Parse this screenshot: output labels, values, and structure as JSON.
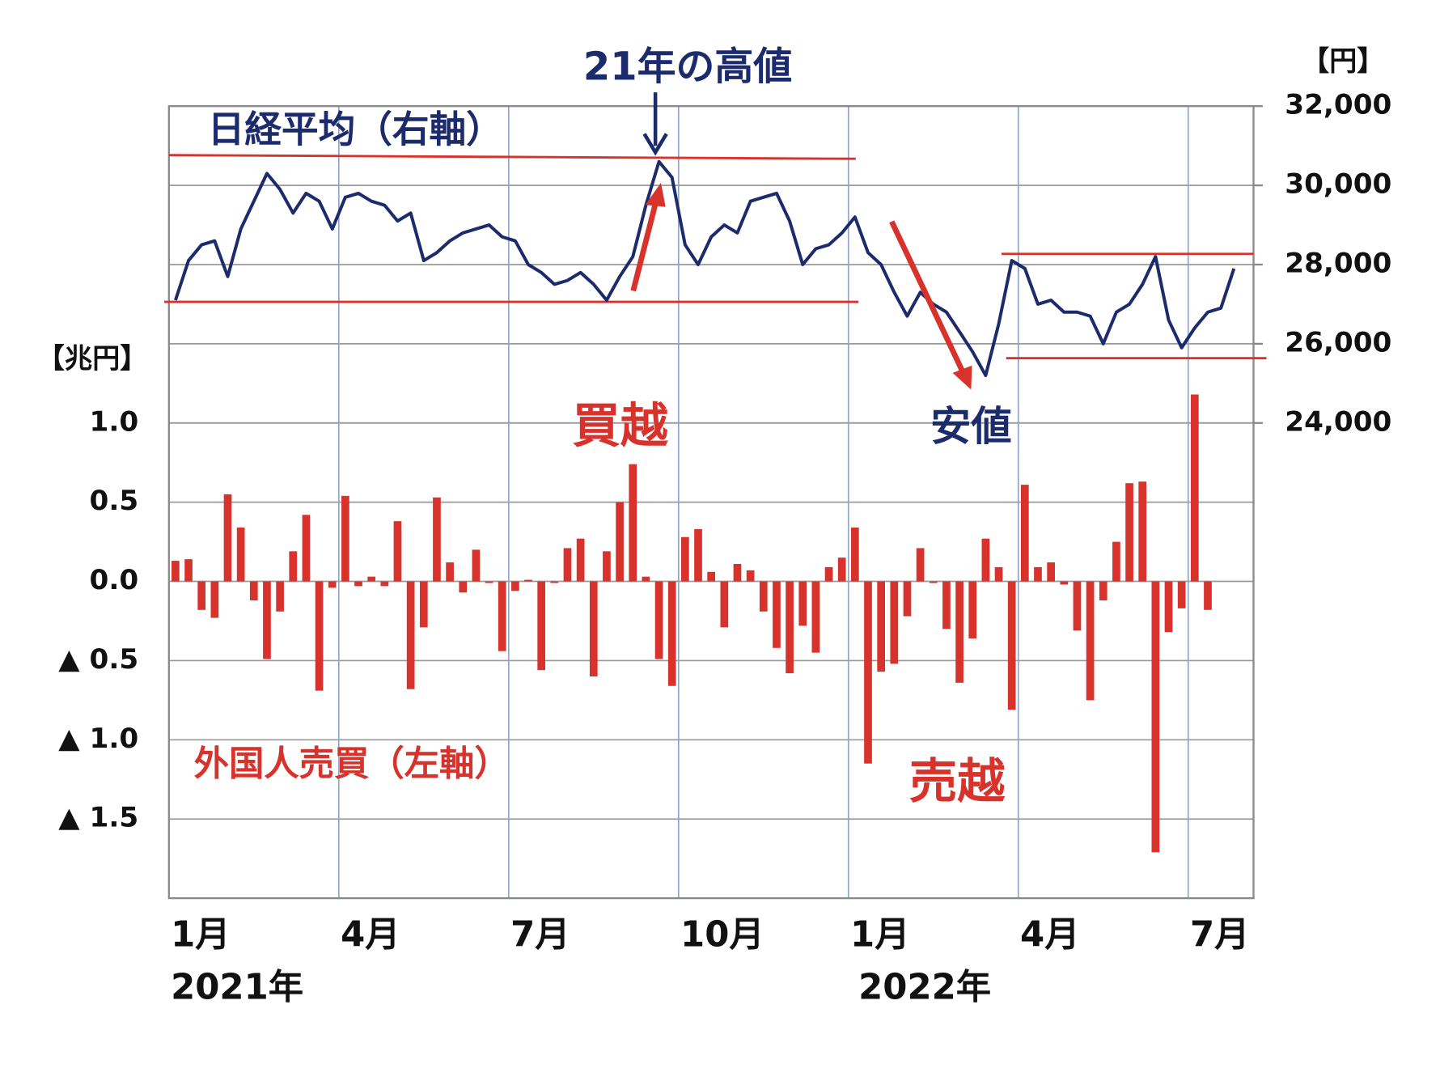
{
  "chart_data": {
    "type": "combo",
    "y_unit": "【兆円】",
    "y2_unit": "【円】",
    "annotations": [
      "21年の高値",
      "買越",
      "売越",
      "安値"
    ],
    "year_labels": [
      "2021年",
      "2022年"
    ],
    "categories": [
      "1月",
      null,
      null,
      null,
      null,
      null,
      null,
      null,
      null,
      null,
      null,
      null,
      null,
      "4月",
      null,
      null,
      null,
      null,
      null,
      null,
      null,
      null,
      null,
      null,
      null,
      null,
      "7月",
      null,
      null,
      null,
      null,
      null,
      null,
      null,
      null,
      null,
      null,
      null,
      null,
      "10月",
      null,
      null,
      null,
      null,
      null,
      null,
      null,
      null,
      null,
      null,
      null,
      null,
      "1月",
      null,
      null,
      null,
      null,
      null,
      null,
      null,
      null,
      null,
      null,
      null,
      null,
      "4月",
      null,
      null,
      null,
      null,
      null,
      null,
      null,
      null,
      null,
      null,
      null,
      null,
      "7月",
      null,
      null,
      null,
      null
    ],
    "ylim": [
      -2,
      3
    ],
    "yticks": [
      {
        "value": 1,
        "label": "1.0"
      },
      {
        "value": 0.5,
        "label": "0.5"
      },
      {
        "value": 0,
        "label": "0.0"
      },
      {
        "value": -0.5,
        "label": "▲ 0.5"
      },
      {
        "value": -1,
        "label": "▲ 1.0"
      },
      {
        "value": -1.5,
        "label": "▲ 1.5"
      }
    ],
    "y2lim": [
      12000,
      32000
    ],
    "y2ticks": [
      {
        "value": 24000,
        "label": "24,000"
      },
      {
        "value": 26000,
        "label": "26,000"
      },
      {
        "value": 28000,
        "label": "28,000"
      },
      {
        "value": 30000,
        "label": "30,000"
      },
      {
        "value": 32000,
        "label": "32,000"
      }
    ],
    "grid": true,
    "series": [
      {
        "name": "日経平均（右軸）",
        "type": "line",
        "axis": "y2",
        "color": "#1b2b6b",
        "values": [
          27100,
          28100,
          28500,
          28600,
          27700,
          28900,
          29600,
          30300,
          29900,
          29300,
          29800,
          29600,
          28900,
          29700,
          29800,
          29600,
          29500,
          29100,
          29300,
          28100,
          28300,
          28600,
          28800,
          28900,
          29000,
          28700,
          28600,
          28000,
          27800,
          27500,
          27600,
          27800,
          27500,
          27100,
          27700,
          28200,
          29500,
          30600,
          30200,
          28500,
          28000,
          28700,
          29000,
          28800,
          29600,
          29700,
          29800,
          29100,
          28000,
          28400,
          28500,
          28800,
          29200,
          28300,
          28000,
          27300,
          26700,
          27300,
          27000,
          26800,
          26300,
          25800,
          25200,
          26500,
          28100,
          27900,
          27000,
          27100,
          26800,
          26800,
          26700,
          26000,
          26800,
          27000,
          27500,
          28200,
          26600,
          25900,
          26400,
          26800,
          26900,
          27900,
          null
        ]
      },
      {
        "name": "外国人売買（左軸）",
        "type": "bar",
        "axis": "y",
        "color": "#d7322b",
        "values": [
          0.13,
          0.14,
          -0.18,
          -0.23,
          0.55,
          0.34,
          -0.12,
          -0.49,
          -0.19,
          0.19,
          0.42,
          -0.69,
          -0.04,
          0.54,
          -0.03,
          0.03,
          -0.03,
          0.38,
          -0.68,
          -0.29,
          0.53,
          0.12,
          -0.07,
          0.2,
          -0.01,
          -0.44,
          -0.06,
          0.01,
          -0.56,
          -0.01,
          0.21,
          0.27,
          -0.6,
          0.19,
          0.5,
          0.74,
          0.03,
          -0.49,
          -0.66,
          0.28,
          0.33,
          0.06,
          -0.29,
          0.11,
          0.07,
          -0.19,
          -0.42,
          -0.58,
          -0.28,
          -0.45,
          0.09,
          0.15,
          0.34,
          -1.15,
          -0.57,
          -0.52,
          -0.22,
          0.21,
          -0.01,
          -0.3,
          -0.64,
          -0.36,
          0.27,
          0.09,
          -0.81,
          0.61,
          0.09,
          0.12,
          -0.02,
          -0.31,
          -0.75,
          -0.12,
          0.25,
          0.62,
          0.63,
          -1.71,
          -0.32,
          -0.17,
          1.18,
          -0.18,
          null,
          null,
          null
        ]
      }
    ]
  }
}
